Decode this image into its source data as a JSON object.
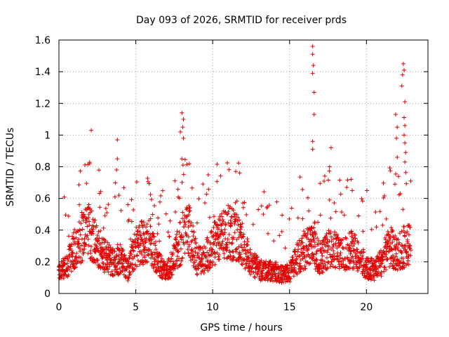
{
  "chart_data": {
    "type": "scatter",
    "title": "Day 093 of 2026, SRMTID for receiver prds",
    "xlabel": "GPS time / hours",
    "ylabel": "SRMTID / TECUs",
    "xlim": [
      0,
      24
    ],
    "ylim": [
      0,
      1.6
    ],
    "xticks": [
      0,
      5,
      10,
      15,
      20
    ],
    "yticks": [
      0,
      0.2,
      0.4,
      0.6,
      0.8,
      1,
      1.2,
      1.4,
      1.6
    ],
    "xtick_labels": [
      "0",
      "5",
      "10",
      "15",
      "20"
    ],
    "ytick_labels": [
      "0",
      "0.2",
      "0.4",
      "0.6",
      "0.8",
      "1",
      "1.2",
      "1.4",
      "1.6"
    ],
    "grid": true,
    "marker": "+",
    "color": "#e00000",
    "series": [
      {
        "name": "SRMTID",
        "envelope": {
          "x": [
            0.0,
            0.5,
            1.0,
            1.5,
            2.0,
            2.5,
            3.0,
            3.5,
            4.0,
            4.5,
            5.0,
            5.5,
            6.0,
            6.5,
            7.0,
            7.5,
            8.0,
            8.5,
            9.0,
            9.5,
            10.0,
            10.5,
            11.0,
            11.5,
            12.0,
            12.5,
            13.0,
            13.5,
            14.0,
            14.5,
            15.0,
            15.5,
            16.0,
            16.5,
            17.0,
            17.5,
            18.0,
            18.5,
            19.0,
            19.5,
            20.0,
            20.5,
            21.0,
            21.5,
            22.0,
            22.5,
            22.9
          ],
          "y": [
            0.13,
            0.17,
            0.28,
            0.36,
            0.4,
            0.3,
            0.24,
            0.2,
            0.22,
            0.14,
            0.3,
            0.32,
            0.3,
            0.18,
            0.13,
            0.22,
            0.35,
            0.4,
            0.2,
            0.22,
            0.3,
            0.35,
            0.4,
            0.36,
            0.3,
            0.2,
            0.15,
            0.14,
            0.14,
            0.12,
            0.13,
            0.22,
            0.28,
            0.3,
            0.22,
            0.28,
            0.27,
            0.25,
            0.28,
            0.25,
            0.16,
            0.15,
            0.2,
            0.3,
            0.25,
            0.3,
            0.3
          ]
        },
        "peaks": [
          {
            "x": 2.1,
            "y": 1.03
          },
          {
            "x": 2.0,
            "y": 0.82
          },
          {
            "x": 3.8,
            "y": 0.97
          },
          {
            "x": 3.8,
            "y": 0.85
          },
          {
            "x": 3.75,
            "y": 0.78
          },
          {
            "x": 3.9,
            "y": 0.62
          },
          {
            "x": 8.0,
            "y": 1.14
          },
          {
            "x": 8.1,
            "y": 1.1
          },
          {
            "x": 8.05,
            "y": 1.05
          },
          {
            "x": 7.9,
            "y": 1.02
          },
          {
            "x": 8.1,
            "y": 0.98
          },
          {
            "x": 8.0,
            "y": 0.85
          },
          {
            "x": 11.5,
            "y": 0.77
          },
          {
            "x": 16.5,
            "y": 1.56
          },
          {
            "x": 16.5,
            "y": 1.51
          },
          {
            "x": 16.55,
            "y": 1.44
          },
          {
            "x": 16.5,
            "y": 1.39
          },
          {
            "x": 16.6,
            "y": 1.27
          },
          {
            "x": 16.6,
            "y": 1.13
          },
          {
            "x": 16.5,
            "y": 0.96
          },
          {
            "x": 16.5,
            "y": 0.91
          },
          {
            "x": 17.7,
            "y": 0.92
          },
          {
            "x": 17.6,
            "y": 0.8
          },
          {
            "x": 17.6,
            "y": 0.59
          },
          {
            "x": 19.0,
            "y": 0.72
          },
          {
            "x": 21.9,
            "y": 1.13
          },
          {
            "x": 22.0,
            "y": 1.05
          },
          {
            "x": 21.95,
            "y": 0.98
          },
          {
            "x": 22.0,
            "y": 0.86
          },
          {
            "x": 22.4,
            "y": 1.45
          },
          {
            "x": 22.45,
            "y": 1.41
          },
          {
            "x": 22.35,
            "y": 1.38
          },
          {
            "x": 22.3,
            "y": 1.31
          },
          {
            "x": 22.5,
            "y": 1.21
          },
          {
            "x": 22.45,
            "y": 1.11
          },
          {
            "x": 22.5,
            "y": 1.06
          },
          {
            "x": 22.45,
            "y": 1.0
          },
          {
            "x": 22.5,
            "y": 0.95
          },
          {
            "x": 22.55,
            "y": 0.89
          },
          {
            "x": 22.5,
            "y": 0.83
          }
        ]
      }
    ]
  }
}
